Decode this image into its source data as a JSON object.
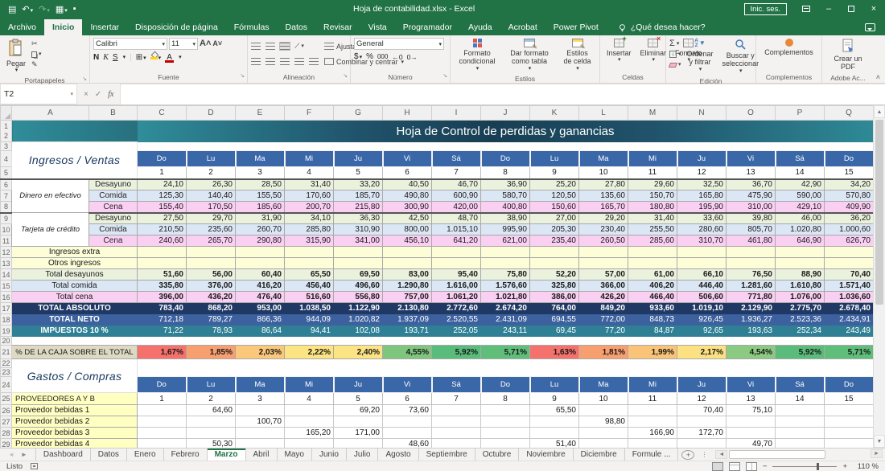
{
  "window": {
    "title": "Hoja de contabilidad.xlsx  -  Excel",
    "sign_in": "Inic. ses.",
    "minimize": "–",
    "close": "×"
  },
  "ribbon": {
    "tabs": [
      "Archivo",
      "Inicio",
      "Insertar",
      "Disposición de página",
      "Fórmulas",
      "Datos",
      "Revisar",
      "Vista",
      "Programador",
      "Ayuda",
      "Acrobat",
      "Power Pivot"
    ],
    "active_tab": "Inicio",
    "search_placeholder": "¿Qué desea hacer?",
    "paste": "Pegar",
    "font_name": "Calibri",
    "font_size": "11",
    "bold": "N",
    "italic": "K",
    "underline": "S",
    "wrap_text": "Ajustar texto",
    "merge_center": "Combinar y centrar",
    "number_format": "General",
    "thousands": "000",
    "percent": "%",
    "currency": "$",
    "cond_format": "Formato condicional",
    "format_table": "Dar formato como tabla",
    "cell_styles": "Estilos de celda",
    "insert": "Insertar",
    "delete": "Eliminar",
    "format": "Formato",
    "autosum": "Σ",
    "sort_filter": "Ordenar y filtrar",
    "find_select": "Buscar y seleccionar",
    "addins_btn": "Complementos",
    "create_pdf": "Crear un PDF",
    "groups": {
      "clipboard": "Portapapeles",
      "font": "Fuente",
      "alignment": "Alineación",
      "number": "Número",
      "styles": "Estilos",
      "cells": "Celdas",
      "editing": "Edición",
      "addins": "Complementos",
      "adobe": "Adobe Ac..."
    }
  },
  "formula_bar": {
    "name_box": "T2",
    "formula": ""
  },
  "colors": {
    "excel_green": "#217346",
    "title_banner_teal": "#2f8d99",
    "title_banner_navy": "#183e53",
    "day_header_blue": "#3a67a8",
    "total_absoluto_bg": "#1f3864",
    "total_neto_bg": "#3c619e",
    "impuestos_bg": "#2f7f95",
    "desayuno_bg": "#eaf1dd",
    "comida_bg": "#dbe7f4",
    "cena_bg": "#f9cff2",
    "label_yellow_bg": "#ffffc2",
    "pct_label_bg": "#ddd9c3"
  },
  "sheet": {
    "columns": [
      "A",
      "B",
      "C",
      "D",
      "E",
      "F",
      "G",
      "H",
      "I",
      "J",
      "K",
      "L",
      "M",
      "N",
      "O",
      "P",
      "Q"
    ],
    "title": "Hoja de Control de perdidas y ganancias",
    "days": [
      "Do",
      "Lu",
      "Ma",
      "Mi",
      "Ju",
      "Vi",
      "Sá",
      "Do",
      "Lu",
      "Ma",
      "Mi",
      "Ju",
      "Vi",
      "Sá",
      "Do"
    ],
    "day_numbers": [
      "1",
      "2",
      "3",
      "4",
      "5",
      "6",
      "7",
      "8",
      "9",
      "10",
      "11",
      "12",
      "13",
      "14",
      "15"
    ],
    "grid_rows": [
      {
        "kind": "title",
        "nums": [
          "1",
          "2"
        ]
      },
      {
        "kind": "section",
        "num": "3",
        "label": "Ingresos / Ventas"
      },
      {
        "kind": "days",
        "num": "4"
      },
      {
        "kind": "daynums",
        "num": "5"
      },
      {
        "kind": "data",
        "num": "6",
        "a": "Dinero en efectivo",
        "arows": 3,
        "b": "Desayuno",
        "type": "desayuno",
        "values": [
          "24,10",
          "26,30",
          "28,50",
          "31,40",
          "33,20",
          "40,50",
          "46,70",
          "36,90",
          "25,20",
          "27,80",
          "29,60",
          "32,50",
          "36,70",
          "42,90",
          "34,20"
        ]
      },
      {
        "kind": "data",
        "num": "7",
        "b": "Comida",
        "type": "comida",
        "values": [
          "125,30",
          "140,40",
          "155,50",
          "170,60",
          "185,70",
          "490,80",
          "600,90",
          "580,70",
          "120,50",
          "135,60",
          "150,70",
          "165,80",
          "475,90",
          "590,00",
          "570,80"
        ]
      },
      {
        "kind": "data",
        "num": "8",
        "b": "Cena",
        "type": "cena",
        "values": [
          "155,40",
          "170,50",
          "185,60",
          "200,70",
          "215,80",
          "300,90",
          "420,00",
          "400,80",
          "150,60",
          "165,70",
          "180,80",
          "195,90",
          "310,00",
          "429,10",
          "409,90"
        ]
      },
      {
        "kind": "data",
        "num": "9",
        "a": "Tarjeta de crédito",
        "arows": 3,
        "b": "Desayuno",
        "type": "desayuno",
        "values": [
          "27,50",
          "29,70",
          "31,90",
          "34,10",
          "36,30",
          "42,50",
          "48,70",
          "38,90",
          "27,00",
          "29,20",
          "31,40",
          "33,60",
          "39,80",
          "46,00",
          "36,20"
        ]
      },
      {
        "kind": "data",
        "num": "10",
        "b": "Comida",
        "type": "comida",
        "values": [
          "210,50",
          "235,60",
          "260,70",
          "285,80",
          "310,90",
          "800,00",
          "1.015,10",
          "995,90",
          "205,30",
          "230,40",
          "255,50",
          "280,60",
          "805,70",
          "1.020,80",
          "1.000,60"
        ]
      },
      {
        "kind": "data",
        "num": "11",
        "b": "Cena",
        "type": "cena",
        "values": [
          "240,60",
          "265,70",
          "290,80",
          "315,90",
          "341,00",
          "456,10",
          "641,20",
          "621,00",
          "235,40",
          "260,50",
          "285,60",
          "310,70",
          "461,80",
          "646,90",
          "626,70"
        ]
      },
      {
        "kind": "data",
        "num": "12",
        "ab": "Ingresos extra",
        "type": "yellow",
        "values": [
          "",
          "",
          "",
          "",
          "",
          "",
          "",
          "",
          "",
          "",
          "",
          "",
          "",
          "",
          ""
        ]
      },
      {
        "kind": "data",
        "num": "13",
        "ab": "Otros ingresos",
        "type": "yellow",
        "values": [
          "",
          "",
          "",
          "",
          "",
          "",
          "",
          "",
          "",
          "",
          "",
          "",
          "",
          "",
          ""
        ]
      },
      {
        "kind": "data",
        "num": "14",
        "ab": "Total desayunos",
        "type": "tdes",
        "values": [
          "51,60",
          "56,00",
          "60,40",
          "65,50",
          "69,50",
          "83,00",
          "95,40",
          "75,80",
          "52,20",
          "57,00",
          "61,00",
          "66,10",
          "76,50",
          "88,90",
          "70,40"
        ]
      },
      {
        "kind": "data",
        "num": "15",
        "ab": "Total comida",
        "type": "tcom",
        "values": [
          "335,80",
          "376,00",
          "416,20",
          "456,40",
          "496,60",
          "1.290,80",
          "1.616,00",
          "1.576,60",
          "325,80",
          "366,00",
          "406,20",
          "446,40",
          "1.281,60",
          "1.610,80",
          "1.571,40"
        ]
      },
      {
        "kind": "data",
        "num": "16",
        "ab": "Total cena",
        "type": "tcen",
        "values": [
          "396,00",
          "436,20",
          "476,40",
          "516,60",
          "556,80",
          "757,00",
          "1.061,20",
          "1.021,80",
          "386,00",
          "426,20",
          "466,40",
          "506,60",
          "771,80",
          "1.076,00",
          "1.036,60"
        ]
      },
      {
        "kind": "data",
        "num": "17",
        "ab": "TOTAL ABSOLUTO",
        "type": "abs",
        "values": [
          "783,40",
          "868,20",
          "953,00",
          "1.038,50",
          "1.122,90",
          "2.130,80",
          "2.772,60",
          "2.674,20",
          "764,00",
          "849,20",
          "933,60",
          "1.019,10",
          "2.129,90",
          "2.775,70",
          "2.678,40"
        ]
      },
      {
        "kind": "data",
        "num": "18",
        "ab": "TOTAL NETO",
        "type": "neto",
        "values": [
          "712,18",
          "789,27",
          "866,36",
          "944,09",
          "1.020,82",
          "1.937,09",
          "2.520,55",
          "2.431,09",
          "694,55",
          "772,00",
          "848,73",
          "926,45",
          "1.936,27",
          "2.523,36",
          "2.434,91"
        ]
      },
      {
        "kind": "data",
        "num": "19",
        "ab": "IMPUESTOS  10 %",
        "type": "imp",
        "values": [
          "71,22",
          "78,93",
          "86,64",
          "94,41",
          "102,08",
          "193,71",
          "252,05",
          "243,11",
          "69,45",
          "77,20",
          "84,87",
          "92,65",
          "193,63",
          "252,34",
          "243,49"
        ]
      },
      {
        "kind": "blank",
        "num": "20"
      },
      {
        "kind": "data",
        "num": "21",
        "ab": "% DE LA CAJA SOBRE EL TOTAL",
        "type": "pct",
        "values": [
          "1,67%",
          "1,85%",
          "2,03%",
          "2,22%",
          "2,40%",
          "4,55%",
          "5,92%",
          "5,71%",
          "1,63%",
          "1,81%",
          "1,99%",
          "2,17%",
          "4,54%",
          "5,92%",
          "5,71%"
        ],
        "colors": [
          "#f4726b",
          "#f89f70",
          "#fbc77a",
          "#fce483",
          "#fce383",
          "#7ec57d",
          "#5abc7a",
          "#60be7b",
          "#f4726b",
          "#f89f70",
          "#fac478",
          "#fce183",
          "#8cca81",
          "#5abc7a",
          "#60be7b"
        ]
      },
      {
        "kind": "gsection",
        "num": "22",
        "label": "Gastos / Compras"
      },
      {
        "kind": "gempty",
        "num": "23"
      },
      {
        "kind": "days",
        "num": "24"
      },
      {
        "kind": "daynums",
        "num": "25",
        "label": "PROVEEDORES A Y B"
      },
      {
        "kind": "data",
        "num": "26",
        "ab": "Proveedor bebidas 1",
        "type": "prov",
        "values": [
          "",
          "64,60",
          "",
          "",
          "69,20",
          "73,60",
          "",
          "",
          "65,50",
          "",
          "",
          "70,40",
          "75,10",
          "",
          ""
        ]
      },
      {
        "kind": "data",
        "num": "27",
        "ab": "Proveedor bebidas 2",
        "type": "prov",
        "values": [
          "",
          "",
          "100,70",
          "",
          "",
          "",
          "",
          "",
          "",
          "98,80",
          "",
          "",
          "",
          "",
          ""
        ]
      },
      {
        "kind": "data",
        "num": "28",
        "ab": "Proveedor bebidas 3",
        "type": "prov",
        "values": [
          "",
          "",
          "",
          "165,20",
          "171,00",
          "",
          "",
          "",
          "",
          "",
          "166,90",
          "172,70",
          "",
          "",
          ""
        ]
      },
      {
        "kind": "data",
        "num": "29",
        "ab": "Proveedor bebidas 4",
        "type": "prov",
        "values": [
          "",
          "50,30",
          "",
          "",
          "",
          "48,60",
          "",
          "",
          "51,40",
          "",
          "",
          "",
          "49,70",
          "",
          ""
        ]
      }
    ]
  },
  "tabs_bar": {
    "sheets": [
      "Dashboard",
      "Datos",
      "Enero",
      "Febrero",
      "Marzo",
      "Abril",
      "Mayo",
      "Junio",
      "Julio",
      "Agosto",
      "Septiembre",
      "Octubre",
      "Noviembre",
      "Diciembre",
      "Formule ..."
    ],
    "active": "Marzo"
  },
  "status_bar": {
    "ready": "Listo",
    "zoom": "110 %"
  }
}
